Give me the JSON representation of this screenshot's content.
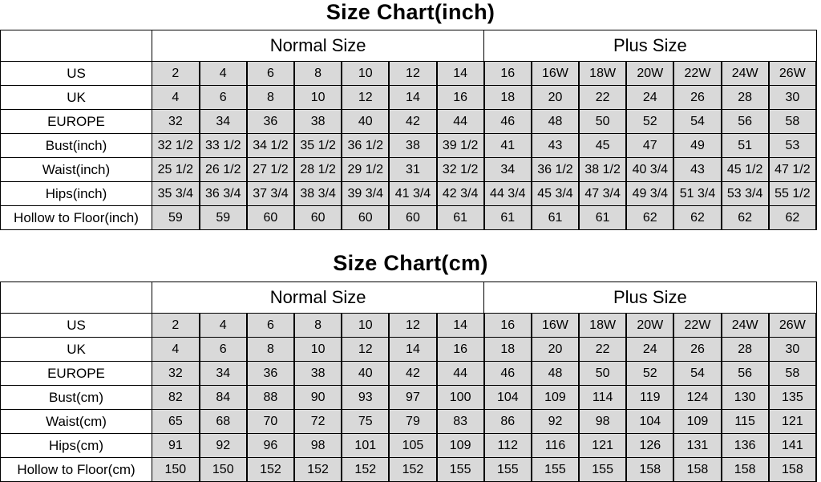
{
  "tables": [
    {
      "title": "Size Chart(inch)",
      "groups": [
        "Normal Size",
        "Plus Size"
      ],
      "rows": [
        {
          "label": "US",
          "values": [
            "2",
            "4",
            "6",
            "8",
            "10",
            "12",
            "14",
            "16",
            "16W",
            "18W",
            "20W",
            "22W",
            "24W",
            "26W"
          ]
        },
        {
          "label": "UK",
          "values": [
            "4",
            "6",
            "8",
            "10",
            "12",
            "14",
            "16",
            "18",
            "20",
            "22",
            "24",
            "26",
            "28",
            "30"
          ]
        },
        {
          "label": "EUROPE",
          "values": [
            "32",
            "34",
            "36",
            "38",
            "40",
            "42",
            "44",
            "46",
            "48",
            "50",
            "52",
            "54",
            "56",
            "58"
          ]
        },
        {
          "label": "Bust(inch)",
          "values": [
            "32 1/2",
            "33 1/2",
            "34 1/2",
            "35 1/2",
            "36 1/2",
            "38",
            "39 1/2",
            "41",
            "43",
            "45",
            "47",
            "49",
            "51",
            "53"
          ]
        },
        {
          "label": "Waist(inch)",
          "values": [
            "25 1/2",
            "26 1/2",
            "27 1/2",
            "28 1/2",
            "29 1/2",
            "31",
            "32 1/2",
            "34",
            "36 1/2",
            "38 1/2",
            "40 3/4",
            "43",
            "45 1/2",
            "47 1/2"
          ]
        },
        {
          "label": "Hips(inch)",
          "values": [
            "35 3/4",
            "36 3/4",
            "37 3/4",
            "38 3/4",
            "39 3/4",
            "41 3/4",
            "42 3/4",
            "44 3/4",
            "45 3/4",
            "47 3/4",
            "49 3/4",
            "51 3/4",
            "53 3/4",
            "55 1/2"
          ]
        },
        {
          "label": "Hollow to Floor(inch)",
          "values": [
            "59",
            "59",
            "60",
            "60",
            "60",
            "60",
            "61",
            "61",
            "61",
            "61",
            "62",
            "62",
            "62",
            "62"
          ]
        }
      ]
    },
    {
      "title": "Size Chart(cm)",
      "groups": [
        "Normal Size",
        "Plus Size"
      ],
      "rows": [
        {
          "label": "US",
          "values": [
            "2",
            "4",
            "6",
            "8",
            "10",
            "12",
            "14",
            "16",
            "16W",
            "18W",
            "20W",
            "22W",
            "24W",
            "26W"
          ]
        },
        {
          "label": "UK",
          "values": [
            "4",
            "6",
            "8",
            "10",
            "12",
            "14",
            "16",
            "18",
            "20",
            "22",
            "24",
            "26",
            "28",
            "30"
          ]
        },
        {
          "label": "EUROPE",
          "values": [
            "32",
            "34",
            "36",
            "38",
            "40",
            "42",
            "44",
            "46",
            "48",
            "50",
            "52",
            "54",
            "56",
            "58"
          ]
        },
        {
          "label": "Bust(cm)",
          "values": [
            "82",
            "84",
            "88",
            "90",
            "93",
            "97",
            "100",
            "104",
            "109",
            "114",
            "119",
            "124",
            "130",
            "135"
          ]
        },
        {
          "label": "Waist(cm)",
          "values": [
            "65",
            "68",
            "70",
            "72",
            "75",
            "79",
            "83",
            "86",
            "92",
            "98",
            "104",
            "109",
            "115",
            "121"
          ]
        },
        {
          "label": "Hips(cm)",
          "values": [
            "91",
            "92",
            "96",
            "98",
            "101",
            "105",
            "109",
            "112",
            "116",
            "121",
            "126",
            "131",
            "136",
            "141"
          ]
        },
        {
          "label": "Hollow to Floor(cm)",
          "values": [
            "150",
            "150",
            "152",
            "152",
            "152",
            "152",
            "155",
            "155",
            "155",
            "155",
            "158",
            "158",
            "158",
            "158"
          ]
        }
      ]
    }
  ],
  "colors": {
    "cell_fill": "#d9d9d9",
    "border": "#000000"
  }
}
